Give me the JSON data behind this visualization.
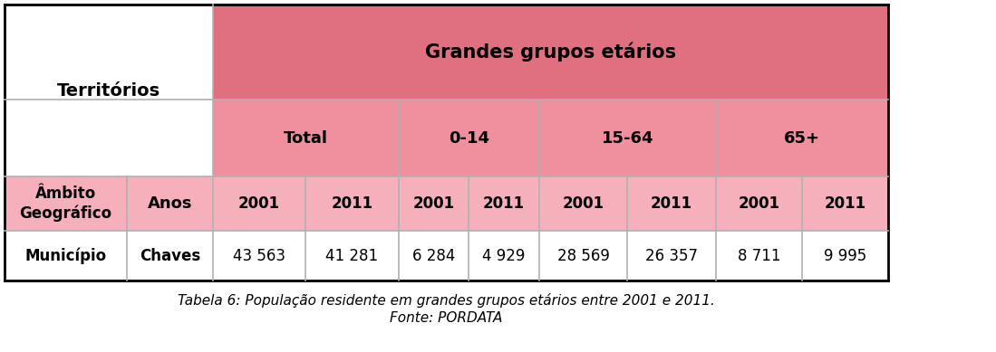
{
  "title": "Tabela 6: População residente em grandes grupos etários entre 2001 e 2011.",
  "subtitle": "Fonte: PORDATA",
  "header1_text": "Grandes grupos etários",
  "header1_bg": "#e07080",
  "header2_bg": "#f0909f",
  "header3_bg": "#f5b0bc",
  "white_bg": "#ffffff",
  "col1_header": "Territórios",
  "col2_header": "Total",
  "col3_header": "0-14",
  "col4_header": "15-64",
  "col5_header": "65+",
  "row_label1": "Âmbito\nGeográfico",
  "row_label2": "Município",
  "row_sublabel1": "Anos",
  "row_sublabel2": "Chaves",
  "years": [
    "2001",
    "2011",
    "2001",
    "2011",
    "2001",
    "2011",
    "2001",
    "2011"
  ],
  "data_row": [
    "43 563",
    "41 281",
    "6 284",
    "4 929",
    "28 569",
    "26 357",
    "8 711",
    "9 995"
  ],
  "border_color": "#b0b0b0",
  "font_size_title": 14,
  "font_size_subheader": 13,
  "font_size_data": 12,
  "font_size_caption": 11
}
